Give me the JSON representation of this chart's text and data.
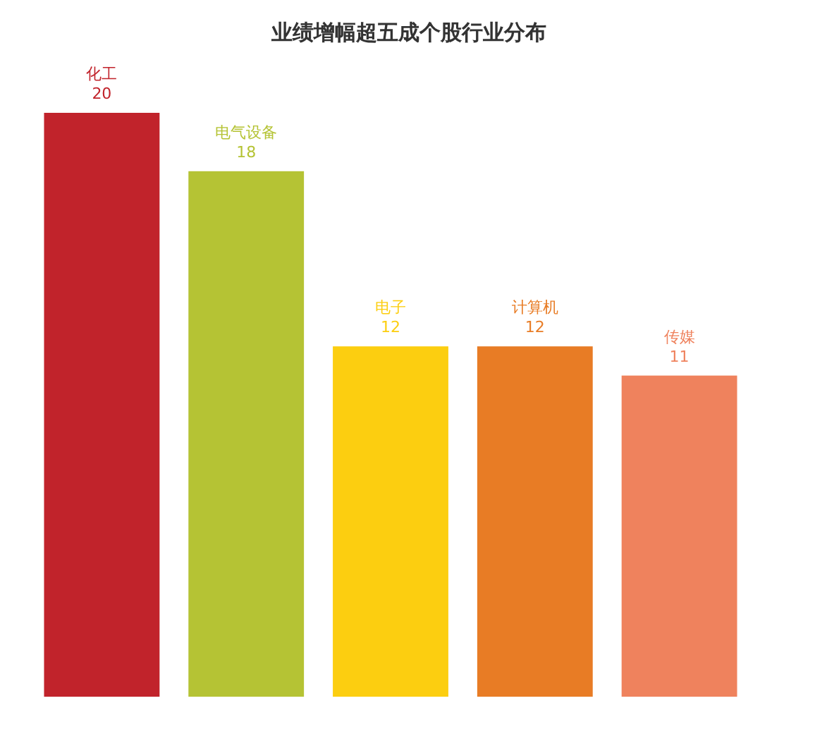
{
  "chart_data": {
    "type": "bar",
    "title": "业绩增幅超五成个股行业分布",
    "categories": [
      "化工",
      "电气设备",
      "电子",
      "计算机",
      "传媒"
    ],
    "values": [
      20,
      18,
      12,
      12,
      11
    ],
    "colors": [
      "#c1232b",
      "#b5c334",
      "#fcce10",
      "#e87c25",
      "#ef825d"
    ],
    "data_labels": true
  }
}
